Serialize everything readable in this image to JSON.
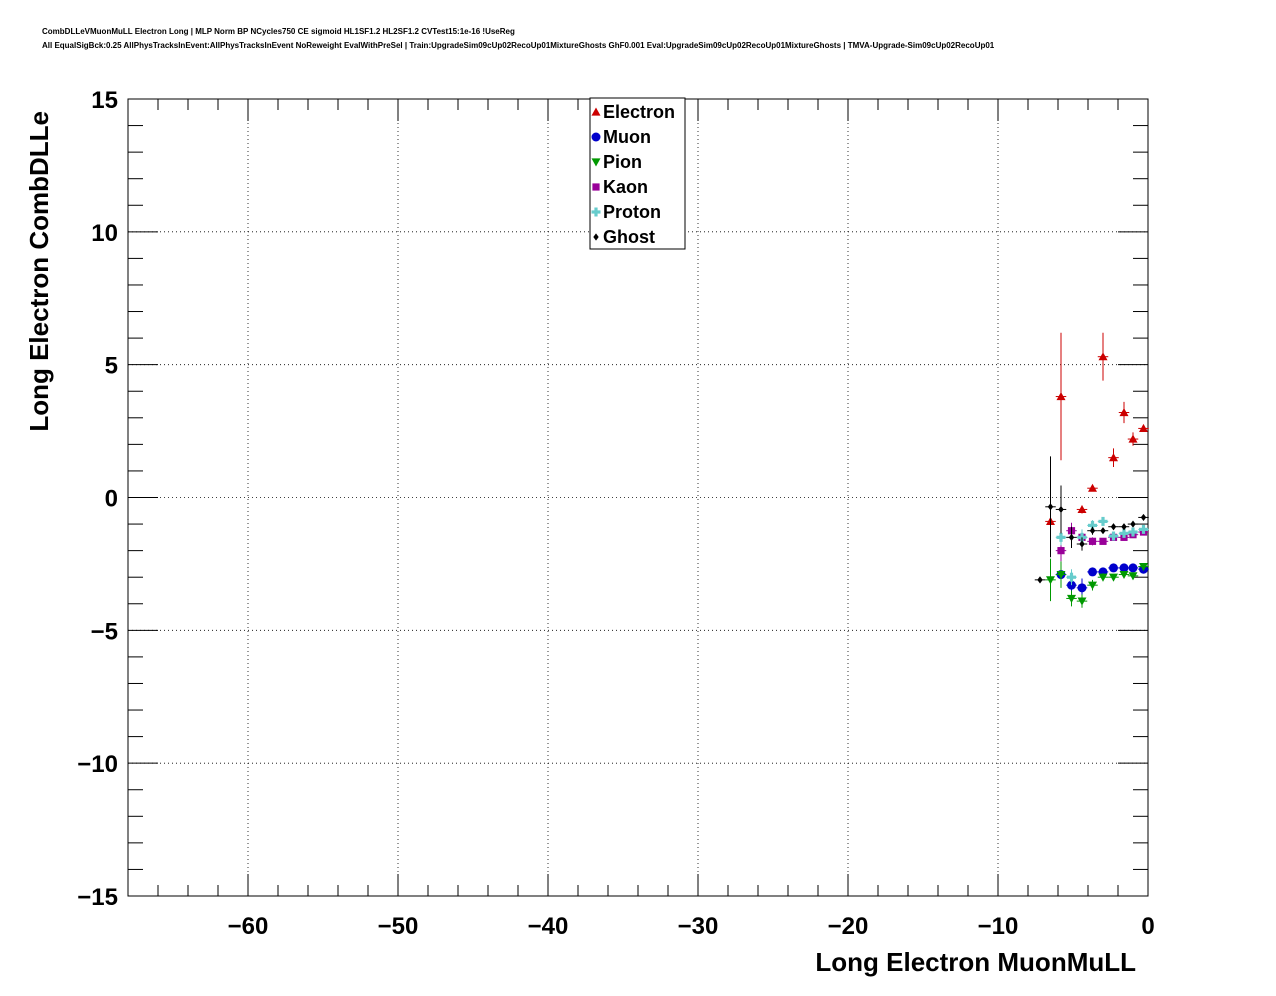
{
  "title_lines": [
    "CombDLLeVMuonMuLL Electron Long | MLP Norm BP NCycles750 CE sigmoid HL1SF1.2 HL2SF1.2 CVTest15:1e-16 !UseReg",
    "All EqualSigBck:0.25 AllPhysTracksInEvent:AllPhysTracksInEvent NoReweight EvalWithPreSel | Train:UpgradeSim09cUp02RecoUp01MixtureGhosts GhF0.001 Eval:UpgradeSim09cUp02RecoUp01MixtureGhosts | TMVA-Upgrade-Sim09cUp02RecoUp01"
  ],
  "chart_data": {
    "type": "scatter",
    "xlabel": "Long Electron MuonMuLL",
    "ylabel": "Long Electron CombDLLe",
    "xlim": [
      -68,
      0
    ],
    "ylim": [
      -15,
      15
    ],
    "xticks": [
      -60,
      -50,
      -40,
      -30,
      -20,
      -10,
      0
    ],
    "yticks": [
      -15,
      -10,
      -5,
      0,
      5,
      10,
      15
    ],
    "xtick_labels": [
      "−60",
      "−50",
      "−40",
      "−30",
      "−20",
      "−10",
      "0"
    ],
    "ytick_labels": [
      "−15",
      "−10",
      "−5",
      "0",
      "5",
      "10",
      "15"
    ],
    "grid": true,
    "legend_position": "top-center",
    "series": [
      {
        "name": "Electron",
        "color": "#cc0000",
        "marker": "triangle-up",
        "points": [
          {
            "x": -6.5,
            "y": -0.9,
            "ey": 0.3
          },
          {
            "x": -5.8,
            "y": 3.8,
            "ey": 2.4
          },
          {
            "x": -4.4,
            "y": -0.45,
            "ey": 0.15
          },
          {
            "x": -3.7,
            "y": 0.35,
            "ey": 0.1
          },
          {
            "x": -3.0,
            "y": 5.3,
            "ey": 0.9
          },
          {
            "x": -2.3,
            "y": 1.5,
            "ey": 0.35
          },
          {
            "x": -1.6,
            "y": 3.2,
            "ey": 0.4
          },
          {
            "x": -1.0,
            "y": 2.2,
            "ey": 0.25
          },
          {
            "x": -0.3,
            "y": 2.6,
            "ey": 0.12
          }
        ]
      },
      {
        "name": "Muon",
        "color": "#0000cc",
        "marker": "circle",
        "points": [
          {
            "x": -5.8,
            "y": -2.9,
            "ey": 0.3
          },
          {
            "x": -5.1,
            "y": -3.3,
            "ey": 0.35
          },
          {
            "x": -4.4,
            "y": -3.4,
            "ey": 0.35
          },
          {
            "x": -3.7,
            "y": -2.8,
            "ey": 0.15
          },
          {
            "x": -3.0,
            "y": -2.8,
            "ey": 0.1
          },
          {
            "x": -2.3,
            "y": -2.65,
            "ey": 0.08
          },
          {
            "x": -1.6,
            "y": -2.65,
            "ey": 0.06
          },
          {
            "x": -1.0,
            "y": -2.65,
            "ey": 0.05
          },
          {
            "x": -0.3,
            "y": -2.7,
            "ey": 0.03
          }
        ]
      },
      {
        "name": "Pion",
        "color": "#009900",
        "marker": "triangle-down",
        "points": [
          {
            "x": -6.5,
            "y": -3.1,
            "ey": 0.8
          },
          {
            "x": -5.8,
            "y": -2.9,
            "ey": 0.5
          },
          {
            "x": -5.1,
            "y": -3.8,
            "ey": 0.3
          },
          {
            "x": -4.4,
            "y": -3.9,
            "ey": 0.25
          },
          {
            "x": -3.7,
            "y": -3.3,
            "ey": 0.2
          },
          {
            "x": -3.0,
            "y": -3.0,
            "ey": 0.15
          },
          {
            "x": -2.3,
            "y": -3.0,
            "ey": 0.1
          },
          {
            "x": -1.6,
            "y": -2.9,
            "ey": 0.08
          },
          {
            "x": -1.0,
            "y": -2.95,
            "ey": 0.06
          },
          {
            "x": -0.3,
            "y": -2.6,
            "ey": 0.04
          }
        ]
      },
      {
        "name": "Kaon",
        "color": "#990099",
        "marker": "square",
        "points": [
          {
            "x": -5.8,
            "y": -2.0,
            "ey": 0.4
          },
          {
            "x": -5.1,
            "y": -1.25,
            "ey": 0.3
          },
          {
            "x": -4.4,
            "y": -1.5,
            "ey": 0.25
          },
          {
            "x": -3.7,
            "y": -1.65,
            "ey": 0.15
          },
          {
            "x": -3.0,
            "y": -1.65,
            "ey": 0.1
          },
          {
            "x": -2.3,
            "y": -1.5,
            "ey": 0.08
          },
          {
            "x": -1.6,
            "y": -1.5,
            "ey": 0.06
          },
          {
            "x": -1.0,
            "y": -1.4,
            "ey": 0.05
          },
          {
            "x": -0.3,
            "y": -1.3,
            "ey": 0.03
          }
        ]
      },
      {
        "name": "Proton",
        "color": "#66cccc",
        "marker": "cross",
        "points": [
          {
            "x": -5.8,
            "y": -1.5,
            "ey": 0.3
          },
          {
            "x": -5.1,
            "y": -3.0,
            "ey": 0.3
          },
          {
            "x": -4.4,
            "y": -1.5,
            "ey": 0.3
          },
          {
            "x": -3.7,
            "y": -1.05,
            "ey": 0.2
          },
          {
            "x": -3.0,
            "y": -0.9,
            "ey": 0.15
          },
          {
            "x": -2.3,
            "y": -1.45,
            "ey": 0.1
          },
          {
            "x": -1.6,
            "y": -1.35,
            "ey": 0.08
          },
          {
            "x": -1.0,
            "y": -1.3,
            "ey": 0.06
          },
          {
            "x": -0.3,
            "y": -1.2,
            "ey": 0.04
          }
        ]
      },
      {
        "name": "Ghost",
        "color": "#000000",
        "marker": "diamond",
        "points": [
          {
            "x": -7.2,
            "y": -3.1,
            "ey": 0.1
          },
          {
            "x": -6.5,
            "y": -0.35,
            "ey": 1.9
          },
          {
            "x": -5.8,
            "y": -0.45,
            "ey": 0.9
          },
          {
            "x": -5.1,
            "y": -1.5,
            "ey": 0.4
          },
          {
            "x": -4.4,
            "y": -1.75,
            "ey": 0.25
          },
          {
            "x": -3.7,
            "y": -1.25,
            "ey": 0.15
          },
          {
            "x": -3.0,
            "y": -1.25,
            "ey": 0.1
          },
          {
            "x": -2.3,
            "y": -1.1,
            "ey": 0.08
          },
          {
            "x": -1.6,
            "y": -1.1,
            "ey": 0.06
          },
          {
            "x": -1.0,
            "y": -1.0,
            "ey": 0.05
          },
          {
            "x": -0.3,
            "y": -0.75,
            "ey": 0.04
          }
        ]
      }
    ]
  }
}
